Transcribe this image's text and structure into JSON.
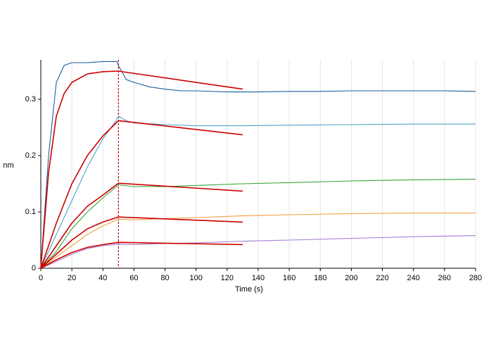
{
  "chart_data": {
    "type": "line",
    "x_label": "Time (s)",
    "y_label": "nm",
    "xlim": [
      0,
      280
    ],
    "ylim": [
      0,
      0.37
    ],
    "xticks": [
      0,
      20,
      40,
      60,
      80,
      100,
      120,
      140,
      160,
      180,
      200,
      220,
      240,
      260,
      280
    ],
    "yticks": [
      0,
      0.1,
      0.2,
      0.3
    ],
    "grid": "x",
    "vline_x": 50,
    "series": [
      {
        "color": "#1f5f9e",
        "x": [
          0,
          5,
          10,
          15,
          20,
          30,
          40,
          49,
          50,
          55,
          60,
          70,
          80,
          90,
          100,
          120,
          140,
          160,
          180,
          200,
          220,
          240,
          260,
          280
        ],
        "values": [
          0,
          0.2,
          0.33,
          0.36,
          0.365,
          0.365,
          0.367,
          0.367,
          0.36,
          0.335,
          0.33,
          0.322,
          0.318,
          0.315,
          0.315,
          0.313,
          0.313,
          0.314,
          0.314,
          0.315,
          0.315,
          0.315,
          0.315,
          0.314
        ]
      },
      {
        "color": "#4fa3c7",
        "x": [
          0,
          10,
          20,
          30,
          40,
          48,
          50,
          55,
          60,
          80,
          100,
          130,
          160,
          200,
          240,
          280
        ],
        "values": [
          0,
          0.06,
          0.12,
          0.18,
          0.23,
          0.26,
          0.27,
          0.262,
          0.258,
          0.255,
          0.253,
          0.253,
          0.254,
          0.255,
          0.256,
          0.256
        ]
      },
      {
        "color": "#3aa33a",
        "x": [
          0,
          10,
          20,
          30,
          40,
          50,
          60,
          80,
          100,
          130,
          160,
          200,
          240,
          280
        ],
        "values": [
          0,
          0.03,
          0.07,
          0.1,
          0.125,
          0.148,
          0.145,
          0.145,
          0.147,
          0.15,
          0.152,
          0.155,
          0.157,
          0.158
        ]
      },
      {
        "color": "#f0a040",
        "x": [
          0,
          10,
          20,
          30,
          40,
          50,
          60,
          80,
          100,
          130,
          160,
          200,
          240,
          280
        ],
        "values": [
          0,
          0.02,
          0.04,
          0.06,
          0.075,
          0.087,
          0.086,
          0.088,
          0.09,
          0.093,
          0.095,
          0.097,
          0.098,
          0.098
        ]
      },
      {
        "color": "#a57fd8",
        "x": [
          0,
          10,
          20,
          30,
          40,
          50,
          60,
          80,
          100,
          130,
          160,
          200,
          240,
          280
        ],
        "values": [
          0,
          0.012,
          0.025,
          0.035,
          0.04,
          0.043,
          0.042,
          0.044,
          0.045,
          0.048,
          0.05,
          0.053,
          0.056,
          0.058
        ]
      },
      {
        "color": "#cc0000",
        "x": [
          0,
          5,
          10,
          15,
          20,
          30,
          40,
          50,
          130
        ],
        "values": [
          0,
          0.17,
          0.27,
          0.31,
          0.33,
          0.345,
          0.349,
          0.35,
          0.318
        ]
      },
      {
        "color": "#cc0000",
        "x": [
          0,
          10,
          20,
          30,
          40,
          50,
          130
        ],
        "values": [
          0,
          0.08,
          0.15,
          0.2,
          0.235,
          0.262,
          0.237
        ]
      },
      {
        "color": "#cc0000",
        "x": [
          0,
          10,
          20,
          30,
          40,
          50,
          130
        ],
        "values": [
          0,
          0.04,
          0.08,
          0.11,
          0.13,
          0.151,
          0.137
        ]
      },
      {
        "color": "#cc0000",
        "x": [
          0,
          10,
          20,
          30,
          40,
          50,
          130
        ],
        "values": [
          0,
          0.025,
          0.05,
          0.07,
          0.082,
          0.091,
          0.082
        ]
      },
      {
        "color": "#cc0000",
        "x": [
          0,
          10,
          20,
          30,
          40,
          50,
          130
        ],
        "values": [
          0,
          0.015,
          0.028,
          0.037,
          0.042,
          0.046,
          0.042
        ]
      }
    ]
  }
}
